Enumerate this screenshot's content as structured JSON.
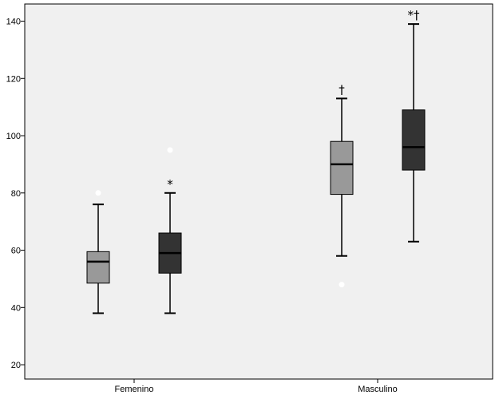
{
  "chart_data": {
    "type": "boxplot",
    "title": "",
    "xlabel": "",
    "ylabel": "",
    "ylim": [
      15,
      146
    ],
    "yticks": [
      20,
      40,
      60,
      80,
      100,
      120,
      140
    ],
    "ytick_labels": [
      "20",
      "40",
      "60",
      "80",
      "100",
      "120",
      "140"
    ],
    "categories": [
      "Femenino",
      "Masculino"
    ],
    "grid": false,
    "legend": "none",
    "colors": {
      "plot_bg": "#f0f0f0",
      "light_box": "#999999",
      "dark_box": "#333333",
      "outlier_fill": "#ffffff"
    },
    "boxes": [
      {
        "category": "Femenino",
        "shade": "light",
        "min": 38,
        "q1": 48.5,
        "median": 56,
        "q3": 59.5,
        "max": 76,
        "outliers": [
          80
        ],
        "annotation": ""
      },
      {
        "category": "Femenino",
        "shade": "dark",
        "min": 38,
        "q1": 52,
        "median": 59,
        "q3": 66,
        "max": 80,
        "outliers": [
          95
        ],
        "annotation": "*"
      },
      {
        "category": "Masculino",
        "shade": "light",
        "min": 58,
        "q1": 79.5,
        "median": 90,
        "q3": 98,
        "max": 113,
        "outliers": [
          48
        ],
        "annotation": "†"
      },
      {
        "category": "Masculino",
        "shade": "dark",
        "min": 63,
        "q1": 88,
        "median": 96,
        "q3": 109,
        "max": 139,
        "outliers": [],
        "annotation": "*†"
      }
    ]
  }
}
